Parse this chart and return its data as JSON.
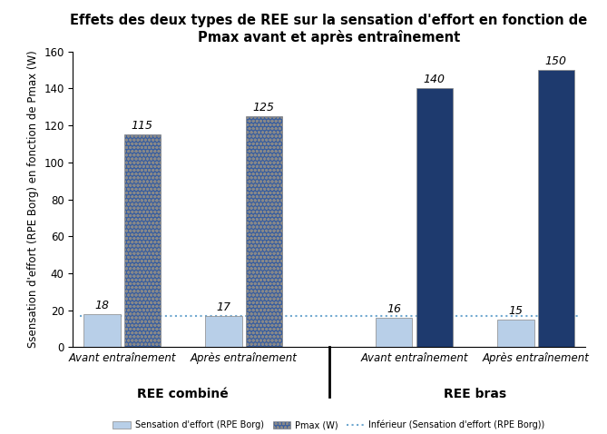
{
  "title": "Effets des deux types de REE sur la sensation d'effort en fonction de\nPmax avant et après entraînement",
  "ylabel": "Ssensation d'effort (RPE Borg) en fonction de Pmax (W)",
  "ylim": [
    0,
    160
  ],
  "yticks": [
    0,
    20,
    40,
    60,
    80,
    100,
    120,
    140,
    160
  ],
  "group_labels": [
    "Avant entraînement",
    "Après entraînement",
    "Avant entraînement",
    "Après entraînement"
  ],
  "section_labels": [
    "REE combiné",
    "REE bras"
  ],
  "rpe_values": [
    18,
    17,
    16,
    15
  ],
  "pmax_values": [
    115,
    125,
    140,
    150
  ],
  "rpe_color": "#b8cfe8",
  "pmax_dotted_color": "#3a5f9f",
  "pmax_solid_color": "#1e3a6e",
  "horizontal_line_value": 17,
  "horizontal_line_color": "#6fa8d0",
  "bar_width": 0.3,
  "title_fontsize": 10.5,
  "label_fontsize": 8.5,
  "tick_fontsize": 8.5,
  "section_label_fontsize": 10,
  "annotation_fontsize": 9,
  "legend_items": [
    "Sensation d'effort (RPE Borg)",
    "Pmax (W)",
    "Inférieur (Sensation d'effort (RPE Borg))"
  ]
}
